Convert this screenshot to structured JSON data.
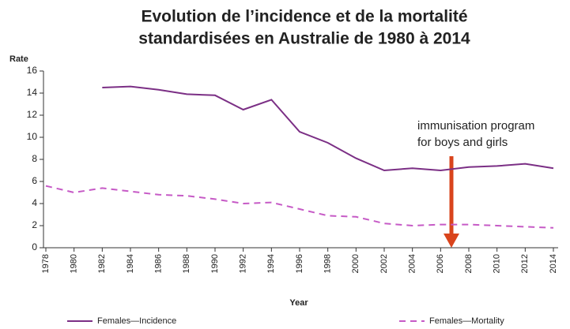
{
  "chart_data": {
    "type": "line",
    "title": "Evolution de l’incidence et de la mortalité standardisées en Australie de 1980 à 2014",
    "title_lines": [
      "Evolution de l’incidence et de la mortalité",
      "standardisées en Australie de 1980 à 2014"
    ],
    "y_label": "Rate",
    "x_label": "Year",
    "annotation": "immunisation program for boys and girls",
    "annotation_lines": [
      "immunisation  program",
      "for boys and girls"
    ],
    "categories": [
      "1978",
      "1980",
      "1982",
      "1984",
      "1986",
      "1988",
      "1990",
      "1992",
      "1994",
      "1996",
      "1998",
      "2000",
      "2002",
      "2004",
      "2006",
      "2008",
      "2010",
      "2012",
      "2014"
    ],
    "series": [
      {
        "name": "Females—Incidence",
        "color": "#7b2f85",
        "dash": false,
        "values": [
          null,
          null,
          14.5,
          14.6,
          14.3,
          13.9,
          13.8,
          12.5,
          13.4,
          10.5,
          9.5,
          8.1,
          7.0,
          7.2,
          7.0,
          7.3,
          7.4,
          7.6,
          7.2
        ]
      },
      {
        "name": "Females—Mortality",
        "color": "#c65ac6",
        "dash": true,
        "values": [
          5.6,
          5.0,
          5.4,
          5.1,
          4.8,
          4.7,
          4.4,
          4.0,
          4.1,
          3.5,
          2.9,
          2.8,
          2.2,
          2.0,
          2.1,
          2.1,
          2.0,
          1.9,
          1.8
        ]
      }
    ],
    "ylim": [
      0,
      16
    ],
    "yticks": [
      0,
      2,
      4,
      6,
      8,
      10,
      12,
      14,
      16
    ]
  }
}
